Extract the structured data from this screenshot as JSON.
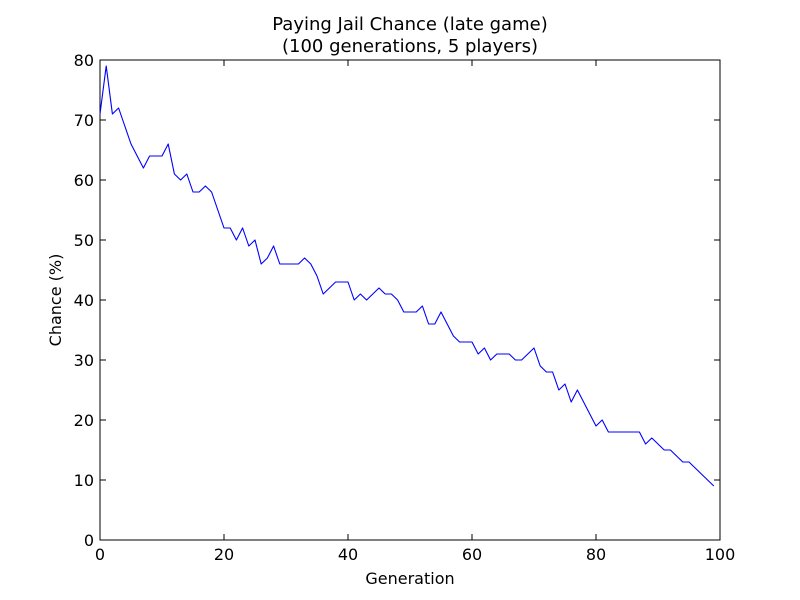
{
  "chart_data": {
    "type": "line",
    "title": "Paying Jail Chance (late game)",
    "subtitle": "(100 generations, 5 players)",
    "xlabel": "Generation",
    "ylabel": "Chance (%)",
    "xlim": [
      0,
      100
    ],
    "ylim": [
      0,
      80
    ],
    "xticks": [
      0,
      20,
      40,
      60,
      80,
      100
    ],
    "yticks": [
      0,
      10,
      20,
      30,
      40,
      50,
      60,
      70,
      80
    ],
    "grid": false,
    "line_color": "#0000ff",
    "x": [
      0,
      1,
      2,
      3,
      4,
      5,
      6,
      7,
      8,
      9,
      10,
      11,
      12,
      13,
      14,
      15,
      16,
      17,
      18,
      19,
      20,
      21,
      22,
      23,
      24,
      25,
      26,
      27,
      28,
      29,
      30,
      31,
      32,
      33,
      34,
      35,
      36,
      37,
      38,
      39,
      40,
      41,
      42,
      43,
      44,
      45,
      46,
      47,
      48,
      49,
      50,
      51,
      52,
      53,
      54,
      55,
      56,
      57,
      58,
      59,
      60,
      61,
      62,
      63,
      64,
      65,
      66,
      67,
      68,
      69,
      70,
      71,
      72,
      73,
      74,
      75,
      76,
      77,
      78,
      79,
      80,
      81,
      82,
      83,
      84,
      85,
      86,
      87,
      88,
      89,
      90,
      91,
      92,
      93,
      94,
      95,
      96,
      97,
      98,
      99
    ],
    "series": [
      {
        "values": [
          71,
          79,
          71,
          72,
          69,
          66,
          64,
          62,
          64,
          64,
          64,
          66,
          61,
          60,
          61,
          58,
          58,
          59,
          58,
          55,
          52,
          52,
          50,
          52,
          49,
          50,
          46,
          47,
          49,
          46,
          46,
          46,
          46,
          47,
          46,
          44,
          41,
          42,
          43,
          43,
          43,
          40,
          41,
          40,
          41,
          42,
          41,
          41,
          40,
          38,
          38,
          38,
          39,
          36,
          36,
          38,
          36,
          34,
          33,
          33,
          33,
          31,
          32,
          30,
          31,
          31,
          31,
          30,
          30,
          31,
          32,
          29,
          28,
          28,
          25,
          26,
          23,
          25,
          23,
          21,
          19,
          20,
          18,
          18,
          18,
          18,
          18,
          18,
          16,
          17,
          16,
          15,
          15,
          14,
          13,
          13,
          12,
          11,
          10,
          9
        ]
      }
    ]
  }
}
